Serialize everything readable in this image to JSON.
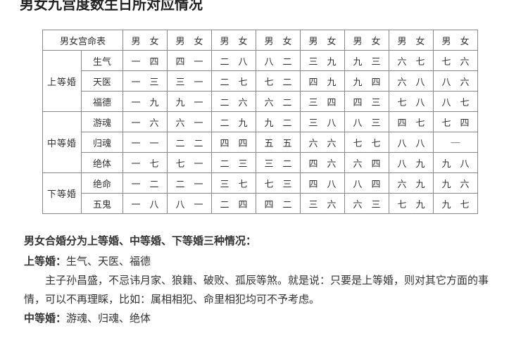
{
  "title_fragment": "男女九宫度数生日所对应情况",
  "table": {
    "header_main": "男女宫命表",
    "header_pair": "男　女",
    "groups": [
      {
        "label": "上等婚",
        "rows": [
          {
            "name": "生气",
            "cells": [
              "一　四",
              "四　一",
              "二　八",
              "八　二",
              "三　九",
              "九　三",
              "六　七",
              "七　六"
            ]
          },
          {
            "name": "天医",
            "cells": [
              "一　三",
              "三　一",
              "二　七",
              "七　二",
              "四　九",
              "九　四",
              "六　八",
              "八　六"
            ]
          },
          {
            "name": "福德",
            "cells": [
              "一　九",
              "九　一",
              "二　六",
              "六　二",
              "三　四",
              "四　三",
              "七　八",
              "八　七"
            ]
          }
        ]
      },
      {
        "label": "中等婚",
        "rows": [
          {
            "name": "游魂",
            "cells": [
              "一　六",
              "六　一",
              "二　九",
              "九　二",
              "三　八",
              "八　三",
              "四　七",
              "七　四"
            ]
          },
          {
            "name": "归魂",
            "cells": [
              "一　一",
              "二　二",
              "四　四",
              "五　五",
              "六　六",
              "七　七",
              "八　八",
              "—"
            ]
          },
          {
            "name": "绝体",
            "cells": [
              "一　七",
              "七　一",
              "二　三",
              "三　二",
              "四　六",
              "六　四",
              "八　九",
              "九　八"
            ]
          }
        ]
      },
      {
        "label": "下等婚",
        "rows": [
          {
            "name": "绝命",
            "cells": [
              "一　二",
              "二　一",
              "三　七",
              "七　三",
              "四　八",
              "八　四",
              "六　九",
              "九　六"
            ]
          },
          {
            "name": "五鬼",
            "cells": [
              "一　八",
              "八　一",
              "二　四",
              "四　二",
              "三　六",
              "六　三",
              "七　九",
              "九　七"
            ]
          }
        ]
      }
    ]
  },
  "text": {
    "intro": "男女合婚分为上等婚、中等婚、下等婚三种情况：",
    "top_label": "上等婚：",
    "top_items": "生气、天医、福德",
    "top_body": "主子孙昌盛，不忌讳月家、狼籍、破败、孤辰等煞。就是说：只要是上等婚，则对其它方面的事情，可以不再理睬，比如：属相相犯、命里相犯均可不予考虑。",
    "mid_label": "中等婚：",
    "mid_items": "游魂、归魂、绝体"
  }
}
